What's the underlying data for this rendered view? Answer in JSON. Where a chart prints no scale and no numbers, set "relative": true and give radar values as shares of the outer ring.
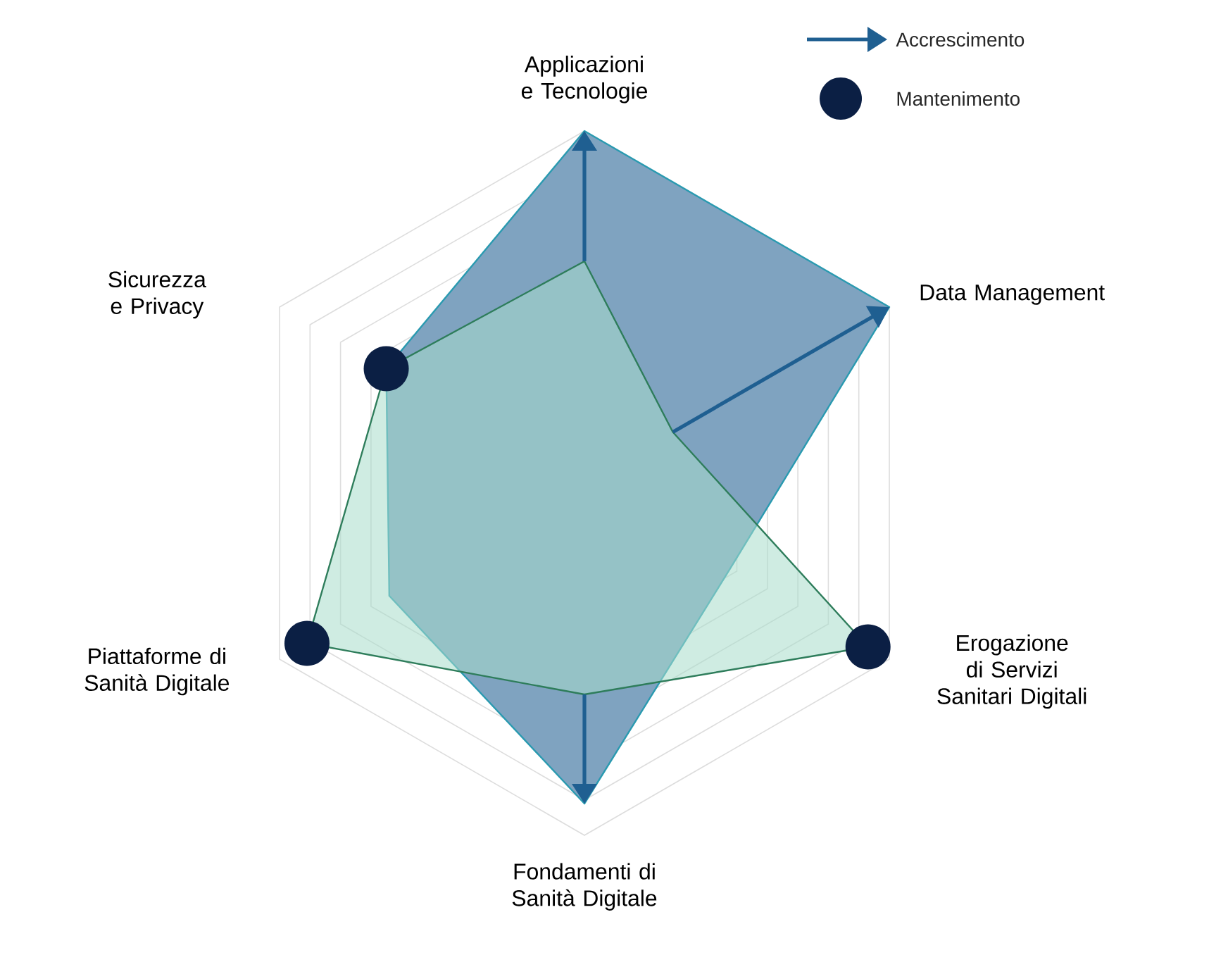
{
  "chart_data": {
    "type": "radar",
    "relative": true,
    "grid": true,
    "categories": [
      "Applicazioni e Tecnologie",
      "Data Management",
      "Erogazione di Servizi Sanitari Digitali",
      "Fondamenti di Sanità Digitale",
      "Piattaforme di Sanità Digitale",
      "Sicurezza e Privacy"
    ],
    "series": [
      {
        "color": "#a8dccb",
        "values": [
          0.63,
          0.29,
          0.93,
          0.6,
          0.91,
          0.65
        ]
      },
      {
        "color": "#7fa3c0",
        "values": [
          1.0,
          1.0,
          0.48,
          0.91,
          0.64,
          0.65
        ]
      }
    ],
    "annotations": [
      "Accrescimento",
      "Mantenimento"
    ]
  }
}
